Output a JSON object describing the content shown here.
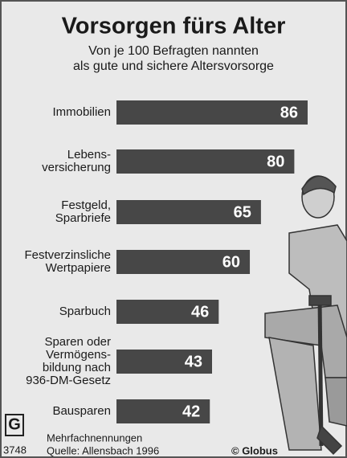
{
  "chart_data": {
    "type": "bar",
    "orientation": "horizontal",
    "title": "Vorsorgen fürs Alter",
    "subtitle": [
      "Von je 100 Befragten nannten",
      "als gute und sichere Altersvorsorge"
    ],
    "categories": [
      "Immobilien",
      "Lebens-\nversicherung",
      "Festgeld,\nSparbriefe",
      "Festverzinsliche\nWertpapiere",
      "Sparbuch",
      "Sparen oder\nVermögens-\nbildung nach\n936-DM-Gesetz",
      "Bausparen"
    ],
    "values": [
      86,
      80,
      65,
      60,
      46,
      43,
      42
    ],
    "color": "#474747",
    "label_color": "#ffffff",
    "footnote": "Mehrfachnennungen",
    "source": "Quelle: Allensbach 1996",
    "credit": "© Globus",
    "graphic_number": "3748",
    "logo": "G"
  }
}
